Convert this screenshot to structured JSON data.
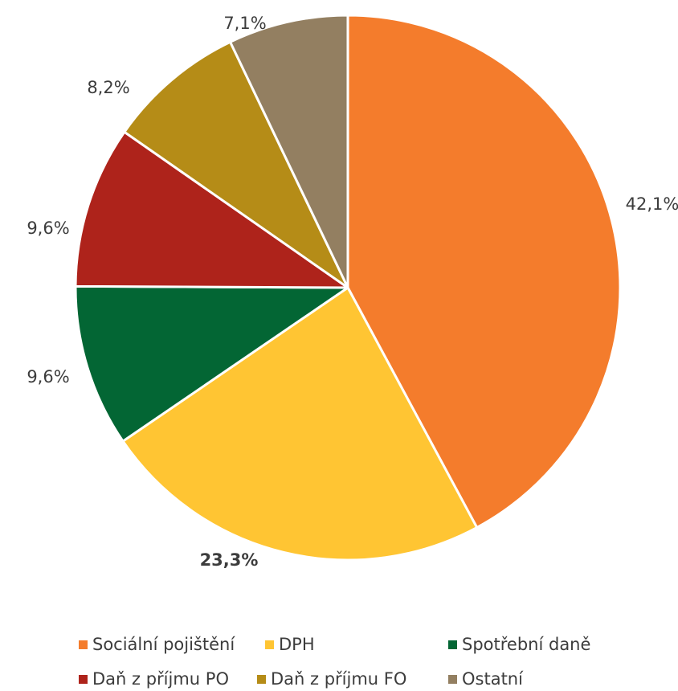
{
  "chart_data": {
    "type": "pie",
    "slices": [
      {
        "name": "Sociální pojištění",
        "value": 42.1,
        "label": "42,1%",
        "color": "#F47C2C"
      },
      {
        "name": "DPH",
        "value": 23.3,
        "label": "23,3%",
        "color": "#FFC533"
      },
      {
        "name": "Spotřební daně",
        "value": 9.6,
        "label": "9,6%",
        "color": "#036634"
      },
      {
        "name": "Daň z příjmu PO",
        "value": 9.6,
        "label": "9,6%",
        "color": "#AE231B"
      },
      {
        "name": "Daň z příjmu FO",
        "value": 8.2,
        "label": "8,2%",
        "color": "#B58C17"
      },
      {
        "name": "Ostatní",
        "value": 7.1,
        "label": "7,1%",
        "color": "#937F61"
      }
    ],
    "bold_labels": [
      "23,3%"
    ],
    "legend_position": "bottom"
  }
}
